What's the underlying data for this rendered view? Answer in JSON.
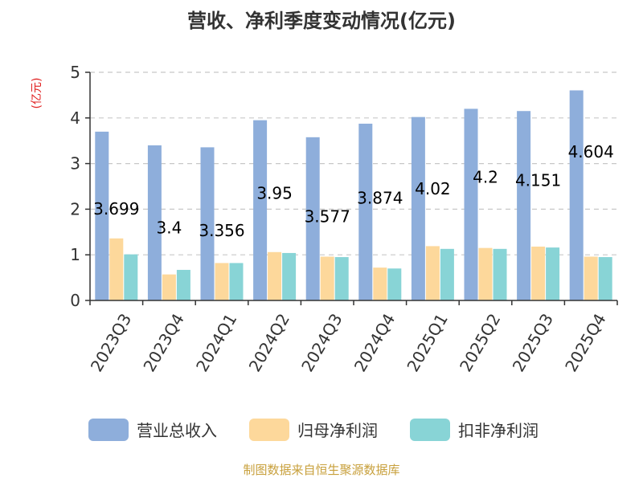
{
  "chart_data": {
    "type": "bar",
    "title": "营收、净利季度变动情况(亿元)",
    "unit_label": "(亿元)",
    "categories": [
      "2023Q3",
      "2023Q4",
      "2024Q1",
      "2024Q2",
      "2024Q3",
      "2024Q4",
      "2025Q1",
      "2025Q2",
      "2025Q3",
      "2025Q4"
    ],
    "series": [
      {
        "name": "营业总收入",
        "color": "#8eaedb",
        "values": [
          3.699,
          3.4,
          3.356,
          3.95,
          3.577,
          3.874,
          4.02,
          4.2,
          4.151,
          4.604
        ]
      },
      {
        "name": "归母净利润",
        "color": "#fdd89b",
        "values": [
          1.36,
          0.57,
          0.82,
          1.06,
          0.96,
          0.72,
          1.19,
          1.15,
          1.18,
          0.96
        ]
      },
      {
        "name": "扣非净利润",
        "color": "#88d4d6",
        "values": [
          1.01,
          0.67,
          0.82,
          1.04,
          0.95,
          0.7,
          1.13,
          1.13,
          1.16,
          0.95
        ]
      }
    ],
    "data_labels": [
      "3.699",
      "3.4",
      "3.356",
      "3.95",
      "3.577",
      "3.874",
      "4.02",
      "4.2",
      "4.151",
      "4.604"
    ],
    "yticks": [
      "0",
      "1",
      "2",
      "3",
      "4",
      "5"
    ],
    "ylim": [
      0,
      5
    ],
    "grid": true,
    "legend_position": "bottom"
  },
  "source": "制图数据来自恒生聚源数据库"
}
